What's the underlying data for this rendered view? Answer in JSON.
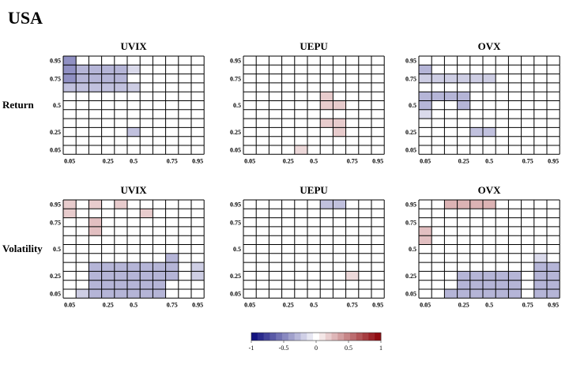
{
  "figure": {
    "title": "USA",
    "row_labels": [
      "Return",
      "Volatility"
    ],
    "col_labels": [
      "UVIX",
      "UEPU",
      "OVX"
    ]
  },
  "chart_data": [
    {
      "type": "heatmap",
      "title": "UVIX",
      "row_label": "Return",
      "grid": "10x10 quantile grid",
      "x_ticks": [
        "0.05",
        "0.25",
        "0.5",
        "0.75",
        "0.95"
      ],
      "y_ticks": [
        "0.95",
        "0.75",
        "0.5",
        "0.25",
        "0.05"
      ],
      "cells": [
        {
          "row": 0,
          "col": 0,
          "value": -0.45
        },
        {
          "row": 1,
          "col": 0,
          "value": -0.45
        },
        {
          "row": 2,
          "col": 0,
          "value": -0.45
        },
        {
          "row": 1,
          "col": 1,
          "value": -0.3
        },
        {
          "row": 1,
          "col": 2,
          "value": -0.3
        },
        {
          "row": 1,
          "col": 3,
          "value": -0.3
        },
        {
          "row": 1,
          "col": 4,
          "value": -0.3
        },
        {
          "row": 2,
          "col": 1,
          "value": -0.3
        },
        {
          "row": 2,
          "col": 2,
          "value": -0.3
        },
        {
          "row": 2,
          "col": 3,
          "value": -0.3
        },
        {
          "row": 2,
          "col": 4,
          "value": -0.3
        },
        {
          "row": 1,
          "col": 5,
          "value": -0.15
        },
        {
          "row": 3,
          "col": 0,
          "value": -0.25
        },
        {
          "row": 3,
          "col": 1,
          "value": -0.25
        },
        {
          "row": 3,
          "col": 2,
          "value": -0.25
        },
        {
          "row": 3,
          "col": 3,
          "value": -0.25
        },
        {
          "row": 3,
          "col": 4,
          "value": -0.25
        },
        {
          "row": 3,
          "col": 5,
          "value": -0.2
        },
        {
          "row": 8,
          "col": 5,
          "value": -0.25
        }
      ]
    },
    {
      "type": "heatmap",
      "title": "UEPU",
      "row_label": "Return",
      "grid": "10x10 quantile grid",
      "x_ticks": [
        "0.05",
        "0.25",
        "0.5",
        "0.75",
        "0.95"
      ],
      "y_ticks": [
        "0.95",
        "0.75",
        "0.5",
        "0.25",
        "0.05"
      ],
      "cells": [
        {
          "row": 4,
          "col": 6,
          "value": 0.2
        },
        {
          "row": 5,
          "col": 6,
          "value": 0.2
        },
        {
          "row": 5,
          "col": 7,
          "value": 0.2
        },
        {
          "row": 7,
          "col": 6,
          "value": 0.2
        },
        {
          "row": 7,
          "col": 7,
          "value": 0.2
        },
        {
          "row": 8,
          "col": 7,
          "value": 0.2
        },
        {
          "row": 10,
          "col": 4,
          "value": 0.15
        }
      ]
    },
    {
      "type": "heatmap",
      "title": "OVX",
      "row_label": "Return",
      "grid": "10x10 quantile grid",
      "x_ticks": [
        "0.05",
        "0.25",
        "0.5",
        "0.75",
        "0.95"
      ],
      "y_ticks": [
        "0.95",
        "0.75",
        "0.5",
        "0.25",
        "0.05"
      ],
      "cells": [
        {
          "row": 1,
          "col": 0,
          "value": -0.3
        },
        {
          "row": 2,
          "col": 0,
          "value": -0.2
        },
        {
          "row": 2,
          "col": 1,
          "value": -0.2
        },
        {
          "row": 2,
          "col": 2,
          "value": -0.2
        },
        {
          "row": 2,
          "col": 3,
          "value": -0.2
        },
        {
          "row": 2,
          "col": 4,
          "value": -0.2
        },
        {
          "row": 2,
          "col": 5,
          "value": -0.2
        },
        {
          "row": 4,
          "col": 0,
          "value": -0.3
        },
        {
          "row": 4,
          "col": 1,
          "value": -0.3
        },
        {
          "row": 4,
          "col": 2,
          "value": -0.3
        },
        {
          "row": 4,
          "col": 3,
          "value": -0.3
        },
        {
          "row": 5,
          "col": 0,
          "value": -0.3
        },
        {
          "row": 5,
          "col": 3,
          "value": -0.3
        },
        {
          "row": 6,
          "col": 0,
          "value": -0.15
        },
        {
          "row": 8,
          "col": 4,
          "value": -0.25
        },
        {
          "row": 8,
          "col": 5,
          "value": -0.25
        }
      ]
    },
    {
      "type": "heatmap",
      "title": "UVIX",
      "row_label": "Volatility",
      "grid": "10x10 quantile grid",
      "x_ticks": [
        "0.05",
        "0.25",
        "0.5",
        "0.75",
        "0.95"
      ],
      "y_ticks": [
        "0.95",
        "0.75",
        "0.5",
        "0.25",
        "0.05"
      ],
      "cells": [
        {
          "row": 0,
          "col": 0,
          "value": 0.2
        },
        {
          "row": 1,
          "col": 0,
          "value": 0.2
        },
        {
          "row": 0,
          "col": 2,
          "value": 0.2
        },
        {
          "row": 2,
          "col": 2,
          "value": 0.25
        },
        {
          "row": 3,
          "col": 2,
          "value": 0.25
        },
        {
          "row": 0,
          "col": 4,
          "value": 0.2
        },
        {
          "row": 1,
          "col": 6,
          "value": 0.2
        },
        {
          "row": 6,
          "col": 8,
          "value": -0.3
        },
        {
          "row": 7,
          "col": 2,
          "value": -0.3
        },
        {
          "row": 7,
          "col": 3,
          "value": -0.3
        },
        {
          "row": 7,
          "col": 4,
          "value": -0.3
        },
        {
          "row": 7,
          "col": 5,
          "value": -0.3
        },
        {
          "row": 7,
          "col": 6,
          "value": -0.3
        },
        {
          "row": 7,
          "col": 7,
          "value": -0.3
        },
        {
          "row": 7,
          "col": 8,
          "value": -0.3
        },
        {
          "row": 7,
          "col": 10,
          "value": -0.2
        },
        {
          "row": 8,
          "col": 2,
          "value": -0.3
        },
        {
          "row": 8,
          "col": 3,
          "value": -0.3
        },
        {
          "row": 8,
          "col": 4,
          "value": -0.3
        },
        {
          "row": 8,
          "col": 5,
          "value": -0.3
        },
        {
          "row": 8,
          "col": 6,
          "value": -0.3
        },
        {
          "row": 8,
          "col": 7,
          "value": -0.3
        },
        {
          "row": 8,
          "col": 8,
          "value": -0.3
        },
        {
          "row": 8,
          "col": 10,
          "value": -0.2
        },
        {
          "row": 9,
          "col": 2,
          "value": -0.3
        },
        {
          "row": 9,
          "col": 3,
          "value": -0.3
        },
        {
          "row": 9,
          "col": 4,
          "value": -0.3
        },
        {
          "row": 9,
          "col": 5,
          "value": -0.3
        },
        {
          "row": 9,
          "col": 6,
          "value": -0.3
        },
        {
          "row": 9,
          "col": 7,
          "value": -0.3
        },
        {
          "row": 10,
          "col": 1,
          "value": -0.2
        },
        {
          "row": 10,
          "col": 2,
          "value": -0.3
        },
        {
          "row": 10,
          "col": 3,
          "value": -0.3
        },
        {
          "row": 10,
          "col": 4,
          "value": -0.3
        },
        {
          "row": 10,
          "col": 5,
          "value": -0.3
        },
        {
          "row": 10,
          "col": 6,
          "value": -0.3
        },
        {
          "row": 10,
          "col": 7,
          "value": -0.3
        }
      ]
    },
    {
      "type": "heatmap",
      "title": "UEPU",
      "row_label": "Volatility",
      "grid": "10x10 quantile grid",
      "x_ticks": [
        "0.05",
        "0.25",
        "0.5",
        "0.75",
        "0.95"
      ],
      "y_ticks": [
        "0.95",
        "0.75",
        "0.5",
        "0.25",
        "0.05"
      ],
      "cells": [
        {
          "row": 0,
          "col": 6,
          "value": -0.25
        },
        {
          "row": 0,
          "col": 7,
          "value": -0.25
        },
        {
          "row": 8,
          "col": 8,
          "value": 0.15
        }
      ]
    },
    {
      "type": "heatmap",
      "title": "OVX",
      "row_label": "Volatility",
      "grid": "10x10 quantile grid",
      "x_ticks": [
        "0.05",
        "0.25",
        "0.5",
        "0.75",
        "0.95"
      ],
      "y_ticks": [
        "0.95",
        "0.75",
        "0.5",
        "0.25",
        "0.05"
      ],
      "cells": [
        {
          "row": 0,
          "col": 2,
          "value": 0.3
        },
        {
          "row": 0,
          "col": 3,
          "value": 0.3
        },
        {
          "row": 0,
          "col": 4,
          "value": 0.3
        },
        {
          "row": 0,
          "col": 5,
          "value": 0.3
        },
        {
          "row": 3,
          "col": 0,
          "value": 0.25
        },
        {
          "row": 4,
          "col": 0,
          "value": 0.25
        },
        {
          "row": 6,
          "col": 9,
          "value": -0.15
        },
        {
          "row": 7,
          "col": 9,
          "value": -0.3
        },
        {
          "row": 7,
          "col": 10,
          "value": -0.3
        },
        {
          "row": 8,
          "col": 3,
          "value": -0.3
        },
        {
          "row": 8,
          "col": 4,
          "value": -0.3
        },
        {
          "row": 8,
          "col": 5,
          "value": -0.3
        },
        {
          "row": 8,
          "col": 6,
          "value": -0.3
        },
        {
          "row": 8,
          "col": 7,
          "value": -0.3
        },
        {
          "row": 8,
          "col": 9,
          "value": -0.3
        },
        {
          "row": 8,
          "col": 10,
          "value": -0.3
        },
        {
          "row": 9,
          "col": 3,
          "value": -0.3
        },
        {
          "row": 9,
          "col": 4,
          "value": -0.3
        },
        {
          "row": 9,
          "col": 5,
          "value": -0.3
        },
        {
          "row": 9,
          "col": 6,
          "value": -0.3
        },
        {
          "row": 9,
          "col": 7,
          "value": -0.3
        },
        {
          "row": 9,
          "col": 9,
          "value": -0.3
        },
        {
          "row": 9,
          "col": 10,
          "value": -0.3
        },
        {
          "row": 10,
          "col": 2,
          "value": -0.3
        },
        {
          "row": 10,
          "col": 3,
          "value": -0.3
        },
        {
          "row": 10,
          "col": 4,
          "value": -0.3
        },
        {
          "row": 10,
          "col": 5,
          "value": -0.3
        },
        {
          "row": 10,
          "col": 6,
          "value": -0.3
        },
        {
          "row": 10,
          "col": 7,
          "value": -0.3
        },
        {
          "row": 10,
          "col": 9,
          "value": -0.3
        },
        {
          "row": 10,
          "col": 10,
          "value": -0.3
        }
      ]
    }
  ],
  "colorbar": {
    "ticks": [
      "-1",
      "-0.5",
      "0",
      "0.5",
      "1"
    ],
    "tick_values": [
      -1,
      -0.5,
      0,
      0.5,
      1
    ],
    "range": [
      -1,
      1
    ],
    "colors": {
      "neg_end": "#08087a",
      "mid": "#ffffff",
      "pos_end": "#8a0005"
    }
  }
}
